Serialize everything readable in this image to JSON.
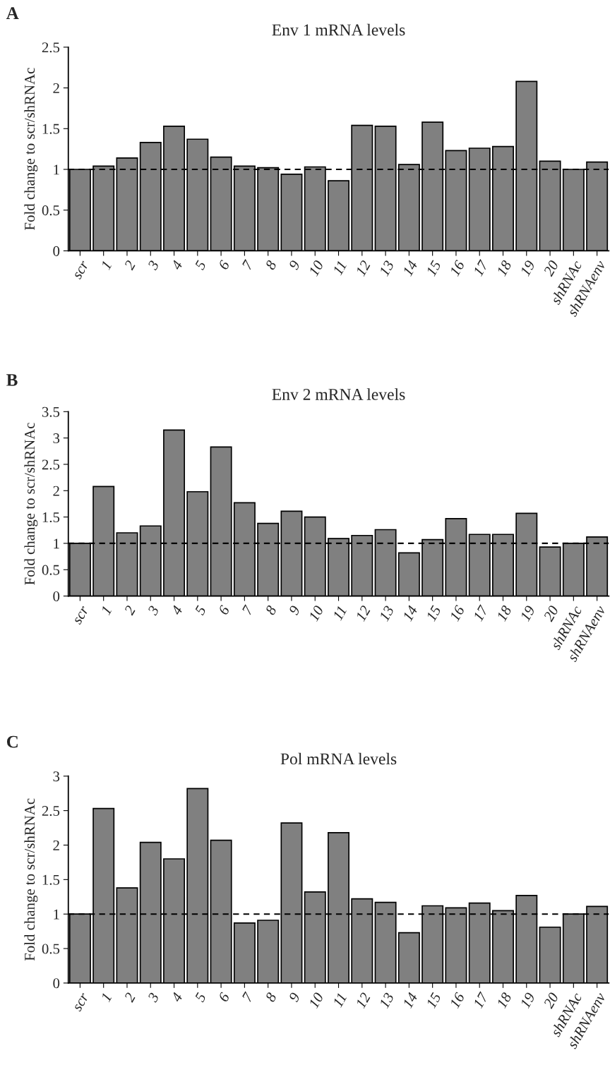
{
  "chart_data": [
    {
      "type": "bar",
      "title": "Env 1 mRNA levels",
      "ylabel": "Fold change to scr/shRNAc",
      "annotations": [
        "A"
      ],
      "categories": [
        "scr",
        "1",
        "2",
        "3",
        "4",
        "5",
        "6",
        "7",
        "8",
        "9",
        "10",
        "11",
        "12",
        "13",
        "14",
        "15",
        "16",
        "17",
        "18",
        "19",
        "20",
        "shRNAc",
        "shRNAenv"
      ],
      "values": [
        1.0,
        1.04,
        1.14,
        1.33,
        1.53,
        1.37,
        1.15,
        1.04,
        1.02,
        0.94,
        1.03,
        0.86,
        1.54,
        1.53,
        1.06,
        1.58,
        1.23,
        1.26,
        1.28,
        2.08,
        1.1,
        1.0,
        1.09
      ],
      "color": "#808080",
      "ylim": [
        0,
        2.5
      ],
      "yticks": [
        0,
        0.5,
        1,
        1.5,
        2,
        2.5
      ],
      "grid": false,
      "legend": false,
      "ref_lines": [
        {
          "axis": "y",
          "value": 1,
          "label": null,
          "color": "#000000",
          "line_style": "dashed"
        }
      ]
    },
    {
      "type": "bar",
      "title": "Env 2 mRNA levels",
      "ylabel": "Fold change to scr/shRNAc",
      "annotations": [
        "B"
      ],
      "categories": [
        "scr",
        "1",
        "2",
        "3",
        "4",
        "5",
        "6",
        "7",
        "8",
        "9",
        "10",
        "11",
        "12",
        "13",
        "14",
        "15",
        "16",
        "17",
        "18",
        "19",
        "20",
        "shRNAc",
        "shRNAenv"
      ],
      "values": [
        1.0,
        2.08,
        1.2,
        1.33,
        3.15,
        1.98,
        2.83,
        1.77,
        1.38,
        1.61,
        1.5,
        1.09,
        1.15,
        1.26,
        0.82,
        1.07,
        1.47,
        1.17,
        1.17,
        1.57,
        0.93,
        1.0,
        1.12
      ],
      "color": "#808080",
      "ylim": [
        0,
        3.5
      ],
      "yticks": [
        0,
        0.5,
        1,
        1.5,
        2,
        2.5,
        3,
        3.5
      ],
      "grid": false,
      "legend": false,
      "ref_lines": [
        {
          "axis": "y",
          "value": 1,
          "label": null,
          "color": "#000000",
          "line_style": "dashed"
        }
      ]
    },
    {
      "type": "bar",
      "title": "Pol mRNA levels",
      "ylabel": "Fold change to scr/shRNAc",
      "annotations": [
        "C"
      ],
      "categories": [
        "scr",
        "1",
        "2",
        "3",
        "4",
        "5",
        "6",
        "7",
        "8",
        "9",
        "10",
        "11",
        "12",
        "13",
        "14",
        "15",
        "16",
        "17",
        "18",
        "19",
        "20",
        "shRNAc",
        "shRNAenv"
      ],
      "values": [
        1.0,
        2.53,
        1.38,
        2.04,
        1.8,
        2.82,
        2.07,
        0.87,
        0.91,
        2.32,
        1.32,
        2.18,
        1.22,
        1.17,
        0.73,
        1.12,
        1.09,
        1.16,
        1.05,
        1.27,
        0.81,
        1.0,
        1.11
      ],
      "color": "#808080",
      "ylim": [
        0,
        3
      ],
      "yticks": [
        0,
        0.5,
        1,
        1.5,
        2,
        2.5,
        3
      ],
      "grid": false,
      "legend": false,
      "ref_lines": [
        {
          "axis": "y",
          "value": 1,
          "label": null,
          "color": "#000000",
          "line_style": "dashed"
        }
      ]
    }
  ]
}
